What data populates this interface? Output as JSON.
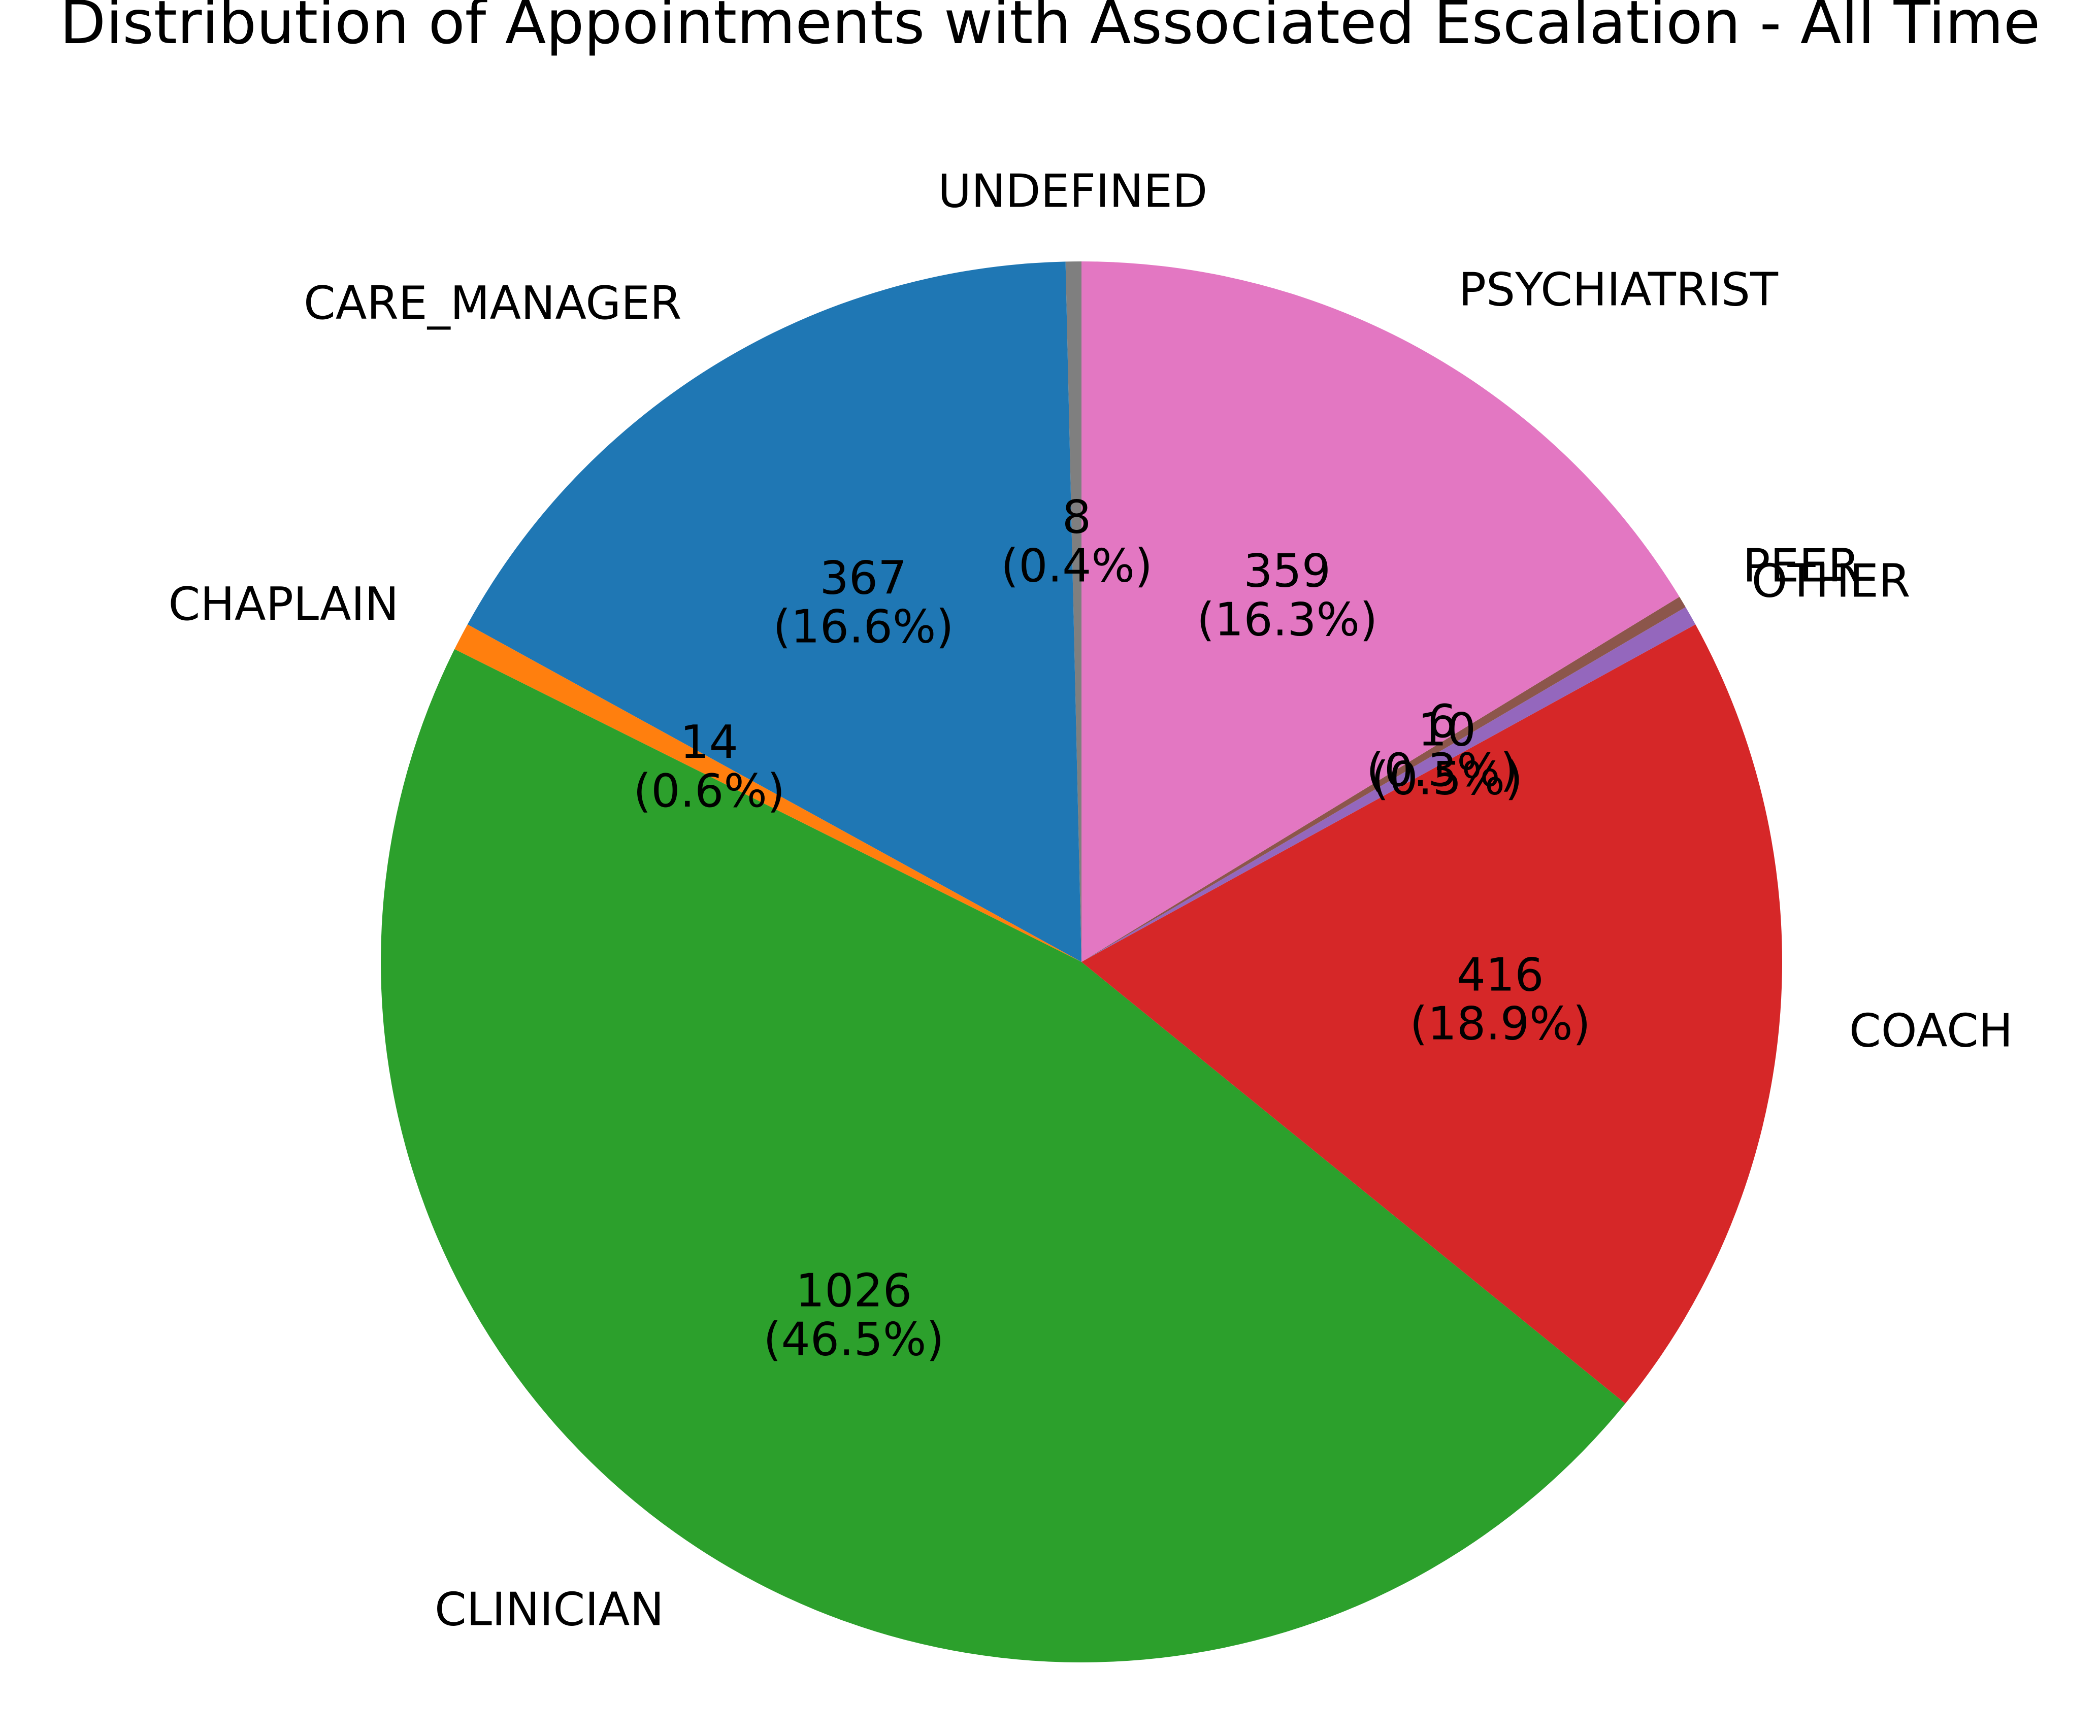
{
  "chart_data": {
    "type": "pie",
    "title": "Distribution of Appointments with Associated Escalation - All Time",
    "start_angle_deg": 90,
    "direction": "counterclockwise",
    "slices": [
      {
        "label": "UNDEFINED",
        "value": 8,
        "pct": "(0.4%)",
        "color": "#7f7f7f"
      },
      {
        "label": "CARE_MANAGER",
        "value": 367,
        "pct": "(16.6%)",
        "color": "#1f77b4"
      },
      {
        "label": "CHAPLAIN",
        "value": 14,
        "pct": "(0.6%)",
        "color": "#ff7f0e"
      },
      {
        "label": "CLINICIAN",
        "value": 1026,
        "pct": "(46.5%)",
        "color": "#2ca02c"
      },
      {
        "label": "COACH",
        "value": 416,
        "pct": "(18.9%)",
        "color": "#d62728"
      },
      {
        "label": "OTHER",
        "value": 10,
        "pct": "(0.5%)",
        "color": "#9467bd"
      },
      {
        "label": "PEER",
        "value": 6,
        "pct": "(0.3%)",
        "color": "#8c564b"
      },
      {
        "label": "PSYCHIATRIST",
        "value": 359,
        "pct": "(16.3%)",
        "color": "#e377c2"
      }
    ]
  }
}
